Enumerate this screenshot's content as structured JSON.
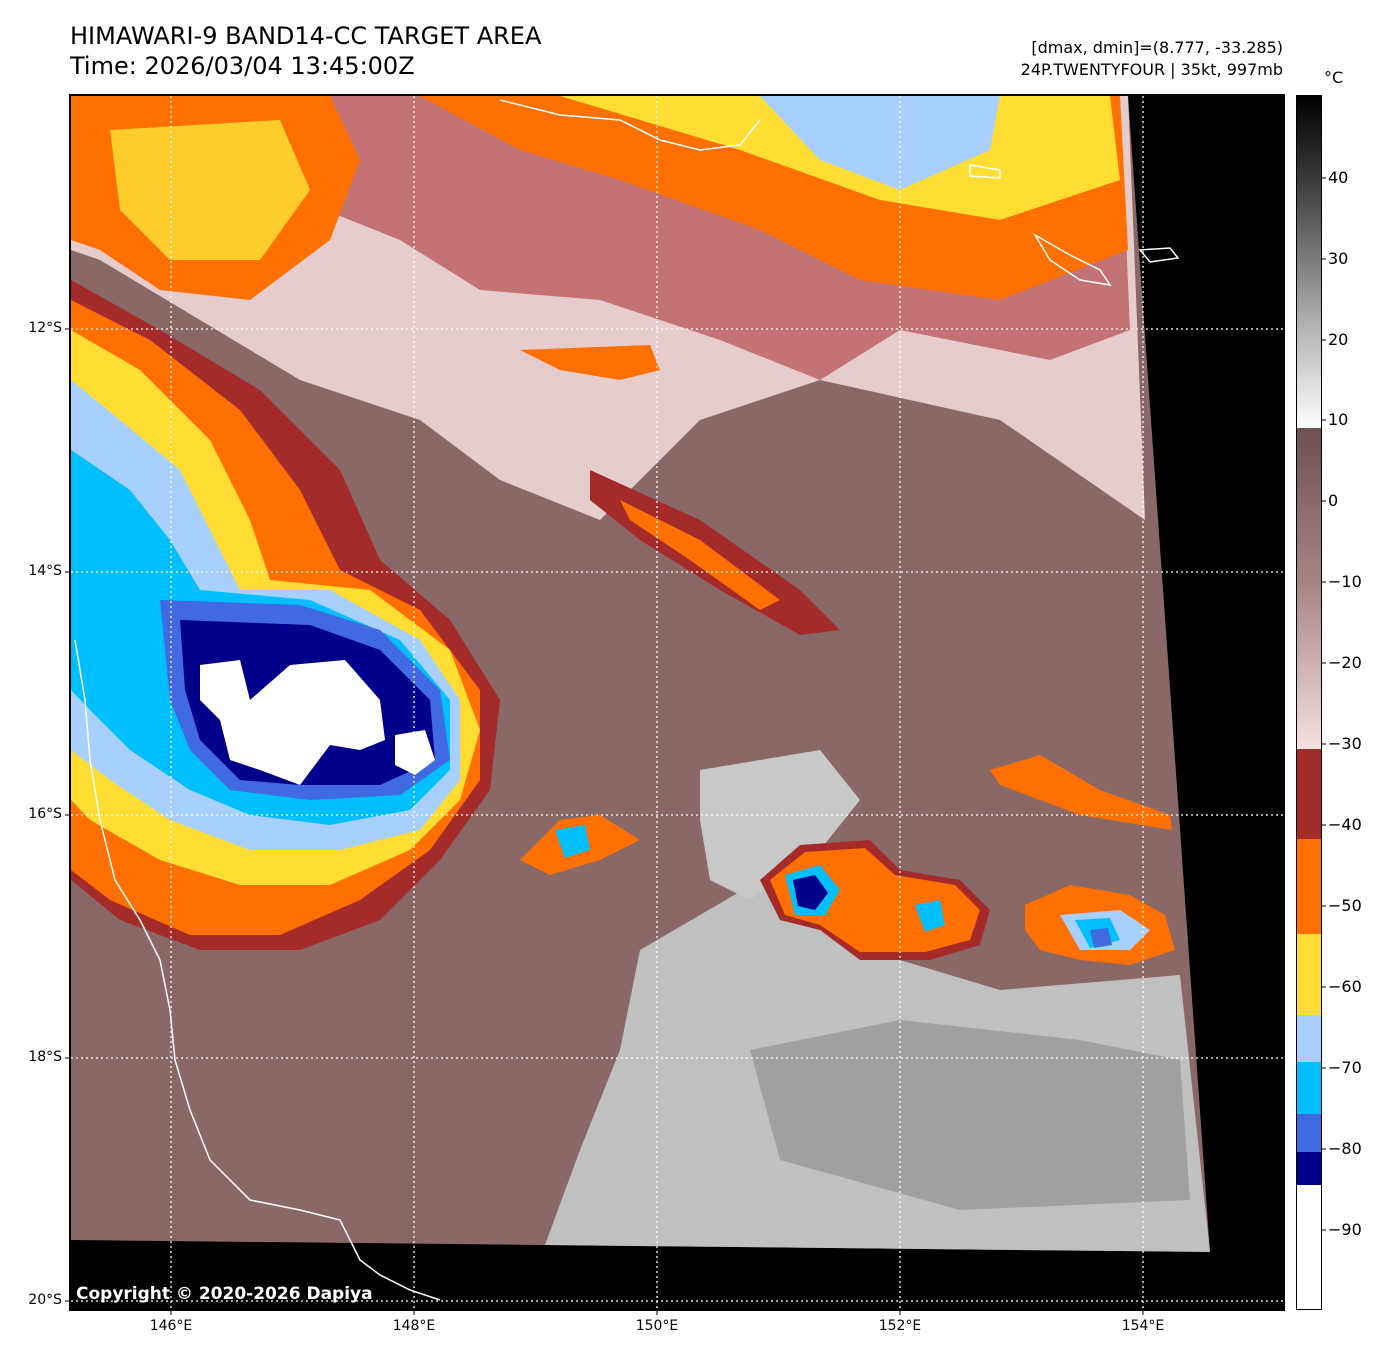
{
  "header": {
    "title": "HIMAWARI-9 BAND14-CC TARGET AREA",
    "time": "Time: 2026/03/04 13:45:00Z",
    "range": "[dmax, dmin]=(8.777, -33.285)",
    "storm": "24P.TWENTYFOUR | 35kt, 997mb"
  },
  "map": {
    "lat_labels": [
      "12°S",
      "14°S",
      "16°S",
      "18°S",
      "20°S"
    ],
    "lon_labels": [
      "146°E",
      "148°E",
      "150°E",
      "152°E",
      "154°E"
    ],
    "copyright": "Copyright © 2020-2026 Dapiya"
  },
  "colorbar": {
    "unit": "°C",
    "tick_labels": [
      "40",
      "30",
      "20",
      "10",
      "0",
      "−10",
      "−20",
      "−30",
      "−40",
      "−50",
      "−60",
      "−70",
      "−80",
      "−90"
    ],
    "colors": {
      "warm_black": "#000000",
      "gray_mid": "#8c8c8c",
      "cloud_brown": "#7d5a5a",
      "pink_light": "#f2dcdc",
      "dark_red": "#a52a2a",
      "orange": "#ff7000",
      "yellow": "#ffdd33",
      "light_blue": "#a8d0ff",
      "cyan": "#00bfff",
      "royal_blue": "#4169e1",
      "navy": "#00008b",
      "white": "#ffffff"
    }
  }
}
